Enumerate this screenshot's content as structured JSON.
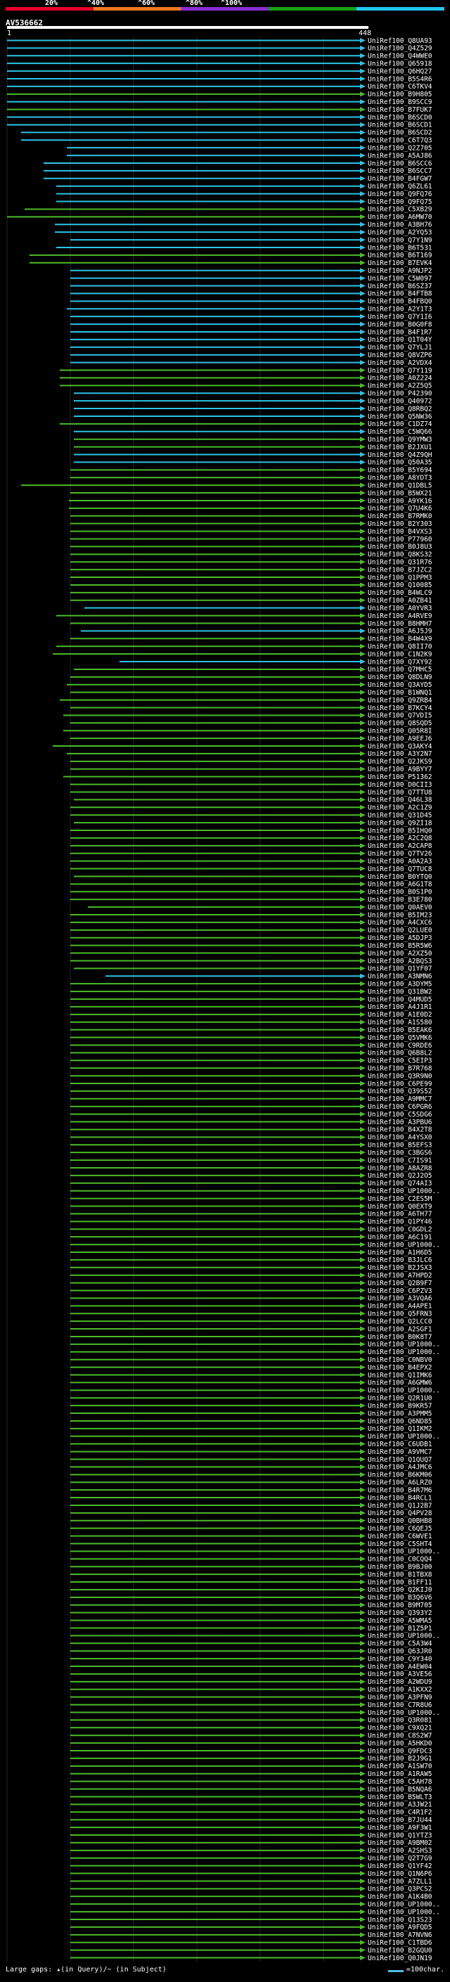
{
  "scale": {
    "colors": [
      "#e8002b",
      "#f07820",
      "#8a2fd0",
      "#18a018",
      "#20c8f0"
    ],
    "labels": [
      "20%",
      "^40%",
      "^60%",
      "^80%",
      "^100%"
    ]
  },
  "query": {
    "id": "AV536662",
    "start": "1",
    "end": "448"
  },
  "hits": [
    [
      "Q8UA93",
      "c",
      10
    ],
    [
      "Q4Z529",
      "c",
      10
    ],
    [
      "Q4WWE0",
      "c",
      10
    ],
    [
      "Q65918",
      "c",
      10
    ],
    [
      "Q6HQ27",
      "c",
      10
    ],
    [
      "B5S4R6",
      "c",
      10
    ],
    [
      "C6TKV4",
      "c",
      10
    ],
    [
      "B9H805",
      "g",
      10
    ],
    [
      "B9SCC9",
      "c",
      10
    ],
    [
      "B7FUK7",
      "g",
      10
    ],
    [
      "B6SCD0",
      "c",
      10
    ],
    [
      "B6SCD1",
      "c",
      10
    ],
    [
      "B6SCD2",
      "c",
      30
    ],
    [
      "C6T7Q3",
      "c",
      30
    ],
    [
      "Q2Z705",
      "c",
      95
    ],
    [
      "A5AJ86",
      "c",
      95
    ],
    [
      "B6SCC6",
      "c",
      62
    ],
    [
      "B6SCC7",
      "c",
      62
    ],
    [
      "B4FGW7",
      "c",
      62
    ],
    [
      "Q6ZL61",
      "c",
      80
    ],
    [
      "Q9FQ76",
      "c",
      80
    ],
    [
      "Q9FQ75",
      "c",
      80
    ],
    [
      "C5XB29",
      "g",
      35
    ],
    [
      "A6MW70",
      "g",
      10
    ],
    [
      "A3BH76",
      "c",
      78
    ],
    [
      "A2YQ53",
      "c",
      78
    ],
    [
      "Q7Y1N9",
      "c",
      100
    ],
    [
      "B6T531",
      "c",
      80
    ],
    [
      "B6T169",
      "g",
      42
    ],
    [
      "B7EVK4",
      "g",
      42
    ],
    [
      "A9NJP2",
      "c",
      100
    ],
    [
      "C5W097",
      "c",
      100
    ],
    [
      "B6SZ37",
      "c",
      100
    ],
    [
      "B4FTB8",
      "c",
      100
    ],
    [
      "B4FBQ0",
      "c",
      100
    ],
    [
      "A2Y1T3",
      "c",
      95
    ],
    [
      "Q7Y1I6",
      "c",
      100
    ],
    [
      "B0G0F8",
      "c",
      100
    ],
    [
      "B4F1R7",
      "c",
      100
    ],
    [
      "Q1T04Y",
      "c",
      100
    ],
    [
      "Q7YLJ1",
      "c",
      100
    ],
    [
      "Q8VZP6",
      "c",
      100
    ],
    [
      "A2VDX4",
      "c",
      100
    ],
    [
      "Q7Y119",
      "g",
      85
    ],
    [
      "A0Z224",
      "g",
      85
    ],
    [
      "A2Z5Q5",
      "g",
      85
    ],
    [
      "P42390",
      "c",
      105
    ],
    [
      "Q40972",
      "c",
      105
    ],
    [
      "Q8RBQ2",
      "c",
      105
    ],
    [
      "Q5NW36",
      "c",
      105
    ],
    [
      "C1DZ74",
      "g",
      85
    ],
    [
      "C5WQ66",
      "c",
      105
    ],
    [
      "Q9YMW3",
      "g",
      105
    ],
    [
      "B2JXU1",
      "g",
      105
    ],
    [
      "Q4Z9QH",
      "c",
      105
    ],
    [
      "Q50A35",
      "c",
      105
    ],
    [
      "B5Y694",
      "g",
      100
    ],
    [
      "A8YDT3",
      "g",
      100
    ],
    [
      "Q1DBL5",
      "g",
      30
    ],
    [
      "B5WX21",
      "g",
      100
    ],
    [
      "A9YK16",
      "g",
      98
    ],
    [
      "Q7U4K6",
      "g",
      98
    ],
    [
      "B7RMK0",
      "g",
      100
    ],
    [
      "B2Y303",
      "g",
      100
    ],
    [
      "B4VXS3",
      "g",
      100
    ],
    [
      "P77960",
      "g",
      100
    ],
    [
      "B0J8U3",
      "g",
      100
    ],
    [
      "Q8KS32",
      "g",
      100
    ],
    [
      "Q31R76",
      "g",
      100
    ],
    [
      "B7JZC2",
      "g",
      100
    ],
    [
      "Q1PPM3",
      "g",
      100
    ],
    [
      "Q10085",
      "g",
      100
    ],
    [
      "B4WLC9",
      "g",
      100
    ],
    [
      "A0ZB41",
      "g",
      100
    ],
    [
      "A0YVR3",
      "c",
      120
    ],
    [
      "A4RVE9",
      "g",
      80
    ],
    [
      "B8HMH7",
      "g",
      100
    ],
    [
      "A6J5J9",
      "c",
      115
    ],
    [
      "B4W4X9",
      "g",
      100
    ],
    [
      "Q8II70",
      "g",
      80
    ],
    [
      "C1N2K9",
      "g",
      75
    ],
    [
      "Q7XY92",
      "c",
      170
    ],
    [
      "Q7MHC5",
      "g",
      105
    ],
    [
      "Q8DLN9",
      "g",
      100
    ],
    [
      "Q3AYD5",
      "g",
      95
    ],
    [
      "B1WNQ1",
      "g",
      100
    ],
    [
      "Q9ZRB4",
      "g",
      85
    ],
    [
      "B7KCY4",
      "g",
      100
    ],
    [
      "Q7VDI5",
      "g",
      90
    ],
    [
      "Q8SQD5",
      "g",
      100
    ],
    [
      "Q05R8I",
      "g",
      90
    ],
    [
      "A9EEJ6",
      "g",
      100
    ],
    [
      "Q3AKY4",
      "g",
      75
    ],
    [
      "A3Y2N7",
      "g",
      95
    ],
    [
      "Q2JKS9",
      "g",
      100
    ],
    [
      "A9BYY7",
      "g",
      100
    ],
    [
      "P51362",
      "g",
      90
    ],
    [
      "D0CII3",
      "g",
      100
    ],
    [
      "Q7TTU8",
      "g",
      100
    ],
    [
      "Q46L38",
      "g",
      105
    ],
    [
      "A2C1Z9",
      "g",
      100
    ],
    [
      "Q31D45",
      "g",
      100
    ],
    [
      "Q9ZI18",
      "g",
      105
    ],
    [
      "B5IHQ0",
      "g",
      100
    ],
    [
      "A2C2Q8",
      "g",
      100
    ],
    [
      "A2CAP8",
      "g",
      100
    ],
    [
      "Q7TV26",
      "g",
      100
    ],
    [
      "A0A2A3",
      "g",
      100
    ],
    [
      "Q7TUC8",
      "g",
      100
    ],
    [
      "B0YTQ0",
      "g",
      105
    ],
    [
      "A6G1T8",
      "g",
      100
    ],
    [
      "B0S1P0",
      "g",
      100
    ],
    [
      "B3E780",
      "g",
      100
    ],
    [
      "Q0AEV0",
      "g",
      125
    ],
    [
      "B5IM23",
      "g",
      100
    ],
    [
      "A4CXC6",
      "g",
      100
    ],
    [
      "Q2LUE0",
      "g",
      100
    ],
    [
      "A5DJP3",
      "g",
      100
    ],
    [
      "B5R5W6",
      "g",
      100
    ],
    [
      "A2XZ50",
      "g",
      100
    ],
    [
      "A2BQS3",
      "g",
      100
    ],
    [
      "Q1YF07",
      "g",
      105
    ],
    [
      "A3NMN6",
      "c",
      150
    ],
    [
      "A3DYM5",
      "g",
      100
    ],
    [
      "Q31BW2",
      "g",
      100
    ],
    [
      "Q4MUD5",
      "g",
      100
    ],
    [
      "A4J1R1",
      "g",
      100
    ],
    [
      "A1E0D2",
      "g",
      100
    ],
    [
      "A1S580",
      "g",
      100
    ],
    [
      "B5EAK6",
      "g",
      100
    ],
    [
      "Q5VMK6",
      "g",
      100
    ],
    [
      "C9RDE6",
      "g",
      100
    ],
    [
      "Q6B8L2",
      "g",
      100
    ],
    [
      "C5EIP3",
      "g",
      100
    ],
    [
      "B7R768",
      "g",
      100
    ],
    [
      "Q3R9N0",
      "g",
      100
    ],
    [
      "C6PE99",
      "g",
      100
    ],
    [
      "Q39S52",
      "g",
      100
    ],
    [
      "A9MMC7",
      "g",
      100
    ],
    [
      "C6PGR6",
      "g",
      100
    ],
    [
      "C5SDG6",
      "g",
      100
    ],
    [
      "A3PBU6",
      "g",
      100
    ],
    [
      "B4X2T8",
      "g",
      100
    ],
    [
      "A4YSX0",
      "g",
      100
    ],
    [
      "B5EFS3",
      "g",
      100
    ],
    [
      "C3BGS6",
      "g",
      100
    ],
    [
      "C7IS91",
      "g",
      100
    ],
    [
      "A8AZR8",
      "g",
      100
    ],
    [
      "Q2J2O5",
      "g",
      100
    ],
    [
      "Q74AI3",
      "g",
      100
    ],
    [
      "UP1000..",
      "g",
      100
    ],
    [
      "C2ES5M",
      "g",
      100
    ],
    [
      "Q0EXT9",
      "g",
      100
    ],
    [
      "A6TH77",
      "g",
      100
    ],
    [
      "Q1PY46",
      "g",
      100
    ],
    [
      "C0GDL2",
      "g",
      100
    ],
    [
      "A6C191",
      "g",
      100
    ],
    [
      "UP1000..",
      "g",
      100
    ],
    [
      "A1H6D5",
      "g",
      100
    ],
    [
      "B3JLC6",
      "g",
      100
    ],
    [
      "B2JSX3",
      "g",
      100
    ],
    [
      "A7HPD2",
      "g",
      100
    ],
    [
      "Q2B9F7",
      "g",
      100
    ],
    [
      "C6PZV3",
      "g",
      100
    ],
    [
      "A3VQA6",
      "g",
      100
    ],
    [
      "A4APE1",
      "g",
      100
    ],
    [
      "Q5FRN3",
      "g",
      100
    ],
    [
      "Q2LCC0",
      "g",
      100
    ],
    [
      "A2SGF1",
      "g",
      100
    ],
    [
      "B0K8T7",
      "g",
      100
    ],
    [
      "UP1000..",
      "g",
      100
    ],
    [
      "UP1000..",
      "g",
      100
    ],
    [
      "C0NBV0",
      "g",
      100
    ],
    [
      "B4EPX2",
      "g",
      100
    ],
    [
      "Q1IMK6",
      "g",
      100
    ],
    [
      "A6GMW6",
      "g",
      100
    ],
    [
      "UP1000..",
      "g",
      100
    ],
    [
      "Q2R1U0",
      "g",
      100
    ],
    [
      "B9KR57",
      "g",
      100
    ],
    [
      "A3PMM5",
      "g",
      100
    ],
    [
      "Q6ND85",
      "g",
      100
    ],
    [
      "Q1IKM2",
      "g",
      100
    ],
    [
      "UP1000..",
      "g",
      100
    ],
    [
      "C6UDB1",
      "g",
      100
    ],
    [
      "A9VMC7",
      "g",
      100
    ],
    [
      "Q1QUQ7",
      "g",
      100
    ],
    [
      "A4JMC6",
      "g",
      100
    ],
    [
      "B6KM06",
      "g",
      100
    ],
    [
      "A6LRZ0",
      "g",
      100
    ],
    [
      "B4R7M6",
      "g",
      100
    ],
    [
      "B4RCL1",
      "g",
      100
    ],
    [
      "Q1J2B7",
      "g",
      100
    ],
    [
      "Q4PV28",
      "g",
      100
    ],
    [
      "Q0BHB8",
      "g",
      100
    ],
    [
      "C6QEJ5",
      "g",
      100
    ],
    [
      "C6WVE1",
      "g",
      100
    ],
    [
      "C5SHT4",
      "g",
      100
    ],
    [
      "UP1000..",
      "g",
      100
    ],
    [
      "C0CQQ4",
      "g",
      100
    ],
    [
      "B9BJ00",
      "g",
      100
    ],
    [
      "B1TBX8",
      "g",
      100
    ],
    [
      "B1FF11",
      "g",
      100
    ],
    [
      "Q2KIJ0",
      "g",
      100
    ],
    [
      "B3Q6V6",
      "g",
      100
    ],
    [
      "B9M705",
      "g",
      100
    ],
    [
      "Q393Y2",
      "g",
      100
    ],
    [
      "A5WMA5",
      "g",
      100
    ],
    [
      "B1Z5P1",
      "g",
      100
    ],
    [
      "UP1000..",
      "g",
      100
    ],
    [
      "C5A3W4",
      "g",
      100
    ],
    [
      "Q63JR0",
      "g",
      100
    ],
    [
      "C9Y340",
      "g",
      100
    ],
    [
      "A4EW04",
      "g",
      100
    ],
    [
      "A3VE56",
      "g",
      100
    ],
    [
      "A2WDU9",
      "g",
      100
    ],
    [
      "A1KXX2",
      "g",
      100
    ],
    [
      "A3PFN9",
      "g",
      100
    ],
    [
      "C7R8U6",
      "g",
      100
    ],
    [
      "UP1000..",
      "g",
      100
    ],
    [
      "Q3R081",
      "g",
      100
    ],
    [
      "C9XQ21",
      "g",
      100
    ],
    [
      "C8S2W7",
      "g",
      100
    ],
    [
      "A5HKD0",
      "g",
      100
    ],
    [
      "Q9FDC3",
      "g",
      100
    ],
    [
      "B2J9G1",
      "g",
      100
    ],
    [
      "A1SW70",
      "g",
      100
    ],
    [
      "A1RAW5",
      "g",
      100
    ],
    [
      "C5AH78",
      "g",
      100
    ],
    [
      "B5NQA6",
      "g",
      100
    ],
    [
      "B5WLT3",
      "g",
      100
    ],
    [
      "A3JW21",
      "g",
      100
    ],
    [
      "C4R1F2",
      "g",
      100
    ],
    [
      "B7JU44",
      "g",
      100
    ],
    [
      "A9F3W1",
      "g",
      100
    ],
    [
      "Q1YTZ3",
      "g",
      100
    ],
    [
      "A9BM02",
      "g",
      100
    ],
    [
      "A2SHS3",
      "g",
      100
    ],
    [
      "Q2T7G9",
      "g",
      100
    ],
    [
      "Q1YF42",
      "g",
      100
    ],
    [
      "Q1N6P6",
      "g",
      100
    ],
    [
      "A7ZLL1",
      "g",
      100
    ],
    [
      "Q3PCS2",
      "g",
      100
    ],
    [
      "A1K4B0",
      "g",
      100
    ],
    [
      "UP1000..",
      "g",
      100
    ],
    [
      "UP1000..",
      "g",
      100
    ],
    [
      "Q13S23",
      "g",
      100
    ],
    [
      "A9FQD5",
      "g",
      100
    ],
    [
      "A7NVN6",
      "g",
      100
    ],
    [
      "C1TBD6",
      "g",
      100
    ],
    [
      "B2GQU0",
      "g",
      100
    ],
    [
      "Q0JN19",
      "g",
      100
    ]
  ],
  "footer": {
    "left": "Large gaps: ▴(in Query)/~ (in Subject)",
    "right": "=100char."
  }
}
